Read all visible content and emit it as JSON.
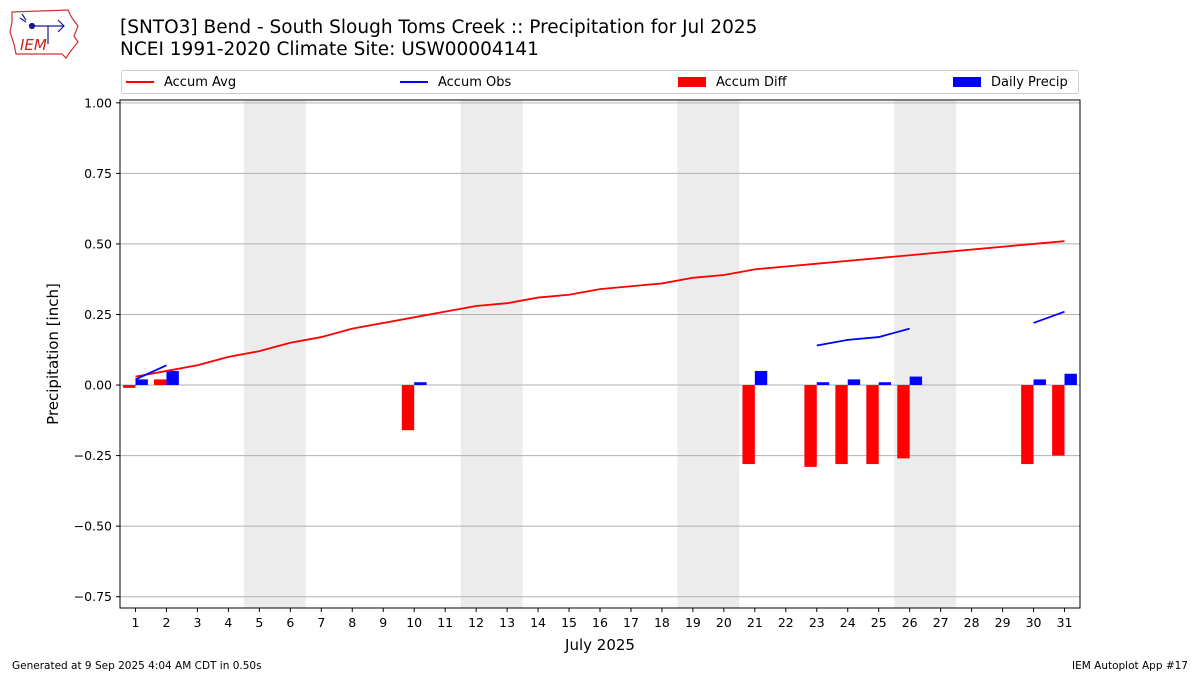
{
  "logo": {
    "text": "IEM"
  },
  "title": {
    "line1": "[SNTO3] Bend - South Slough Toms Creek :: Precipitation for Jul 2025",
    "line2": "NCEI 1991-2020 Climate Site: USW00004141"
  },
  "legend": [
    {
      "label": "Accum Avg",
      "kind": "line",
      "color": "#ff0000"
    },
    {
      "label": "Accum Obs",
      "kind": "line",
      "color": "#0000ff"
    },
    {
      "label": "Accum Diff",
      "kind": "box",
      "color": "#ff0000"
    },
    {
      "label": "Daily Precip",
      "kind": "box",
      "color": "#0000ff"
    }
  ],
  "footer": {
    "left": "Generated at 9 Sep 2025 4:04 AM CDT in 0.50s",
    "right": "IEM Autoplot App #17"
  },
  "chart_data": {
    "type": "bar",
    "xlabel": "July 2025",
    "ylabel": "Precipitation [inch]",
    "xlim": [
      0.5,
      31.5
    ],
    "ylim": [
      -0.79,
      1.01
    ],
    "yticks": [
      -0.75,
      -0.5,
      -0.25,
      0.0,
      0.25,
      0.5,
      0.75,
      1.0
    ],
    "ytick_labels": [
      "−0.75",
      "−0.50",
      "−0.25",
      "0.00",
      "0.25",
      "0.50",
      "0.75",
      "1.00"
    ],
    "days": [
      1,
      2,
      3,
      4,
      5,
      6,
      7,
      8,
      9,
      10,
      11,
      12,
      13,
      14,
      15,
      16,
      17,
      18,
      19,
      20,
      21,
      22,
      23,
      24,
      25,
      26,
      27,
      28,
      29,
      30,
      31
    ],
    "grid": "horizontal",
    "weekend_shading": [
      [
        4.5,
        6.5
      ],
      [
        11.5,
        13.5
      ],
      [
        18.5,
        20.5
      ],
      [
        25.5,
        27.5
      ]
    ],
    "accum_avg": [
      0.03,
      0.05,
      0.07,
      0.1,
      0.12,
      0.15,
      0.17,
      0.2,
      0.22,
      0.24,
      0.26,
      0.28,
      0.29,
      0.31,
      0.32,
      0.34,
      0.35,
      0.36,
      0.38,
      0.39,
      0.41,
      0.42,
      0.43,
      0.44,
      0.45,
      0.46,
      0.47,
      0.48,
      0.49,
      0.5,
      0.51
    ],
    "accum_obs_segments": [
      {
        "x": [
          1,
          2
        ],
        "y": [
          0.02,
          0.07
        ]
      },
      {
        "x": [
          23,
          24,
          25,
          26
        ],
        "y": [
          0.14,
          0.16,
          0.17,
          0.2
        ]
      },
      {
        "x": [
          30,
          31
        ],
        "y": [
          0.22,
          0.26
        ]
      }
    ],
    "accum_diff": [
      {
        "day": 1,
        "value": -0.01
      },
      {
        "day": 2,
        "value": 0.02
      },
      {
        "day": 10,
        "value": -0.16
      },
      {
        "day": 21,
        "value": -0.28
      },
      {
        "day": 23,
        "value": -0.29
      },
      {
        "day": 24,
        "value": -0.28
      },
      {
        "day": 25,
        "value": -0.28
      },
      {
        "day": 26,
        "value": -0.26
      },
      {
        "day": 30,
        "value": -0.28
      },
      {
        "day": 31,
        "value": -0.25
      }
    ],
    "daily_precip": [
      {
        "day": 1,
        "value": 0.02
      },
      {
        "day": 2,
        "value": 0.05
      },
      {
        "day": 10,
        "value": 0.01
      },
      {
        "day": 21,
        "value": 0.05
      },
      {
        "day": 23,
        "value": 0.01
      },
      {
        "day": 24,
        "value": 0.02
      },
      {
        "day": 25,
        "value": 0.01
      },
      {
        "day": 26,
        "value": 0.03
      },
      {
        "day": 30,
        "value": 0.02
      },
      {
        "day": 31,
        "value": 0.04
      }
    ],
    "colors": {
      "accum_avg": "#ff0000",
      "accum_obs": "#0000ff",
      "accum_diff": "#ff0000",
      "daily_precip": "#0000ff",
      "weekend": "#ececec",
      "grid": "#b0b0b0"
    }
  }
}
